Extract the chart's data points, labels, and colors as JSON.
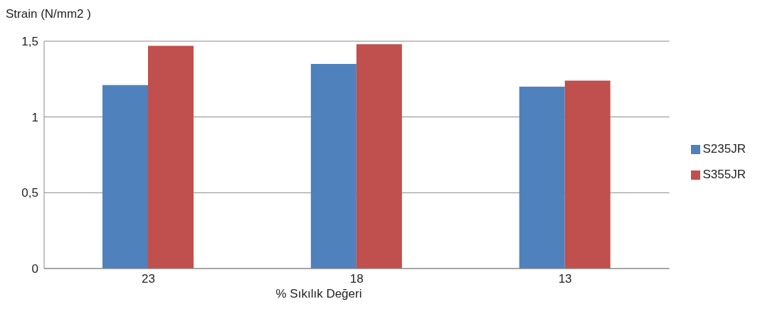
{
  "chart_data": {
    "type": "bar",
    "ylabel": "Strain (N/mm2 )",
    "xlabel": "% Sıkılık Değeri",
    "categories": [
      "23",
      "18",
      "13"
    ],
    "series": [
      {
        "name": "S235JR",
        "color": "#4f81bd",
        "values": [
          1.21,
          1.35,
          1.2
        ]
      },
      {
        "name": "S355JR",
        "color": "#c0504d",
        "values": [
          1.47,
          1.48,
          1.24
        ]
      }
    ],
    "ylim": [
      0,
      1.5
    ],
    "yticks": [
      0,
      {
        "value": 0.5,
        "label": "0,5"
      },
      1,
      {
        "value": 1.5,
        "label": "1,5"
      }
    ],
    "grid": "y",
    "legend": "right"
  }
}
